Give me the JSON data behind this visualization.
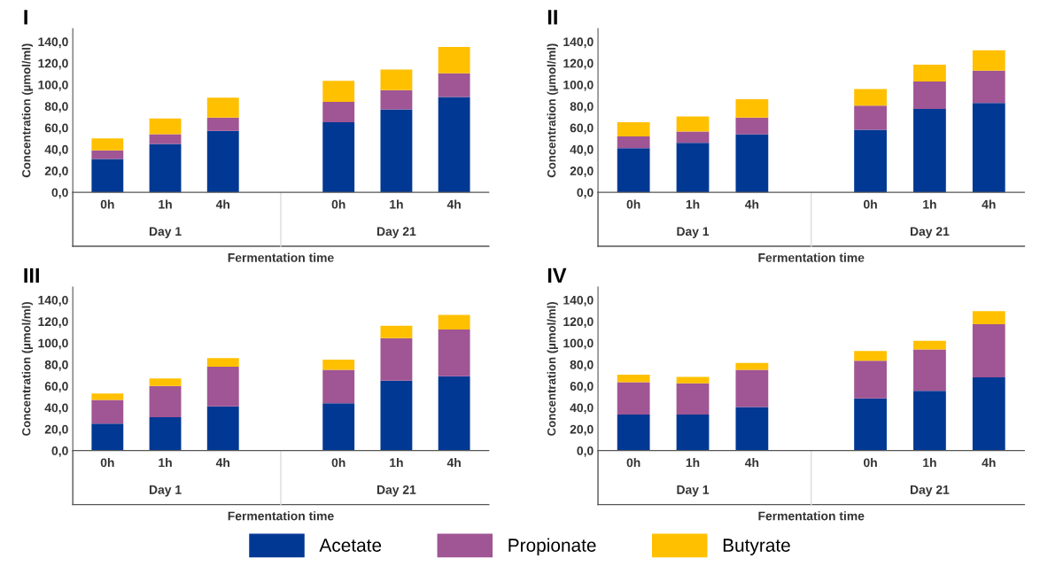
{
  "chart_data": [
    {
      "type": "bar",
      "title": "I",
      "stacked": true,
      "ylabel": "Concentration (µmol/ml)",
      "xlabel": "Fermentation time",
      "annotations": [
        "Day 1",
        "Day 21"
      ],
      "legend": "bottom",
      "categories": [
        "0h",
        "1h",
        "4h",
        null,
        "0h",
        "1h",
        "4h"
      ],
      "ylim": [
        0,
        152
      ],
      "yticks": [
        {
          "value": 0,
          "label": "0,0"
        },
        {
          "value": 20,
          "label": "20,0"
        },
        {
          "value": 40,
          "label": "40,0"
        },
        {
          "value": 60,
          "label": "60,0"
        },
        {
          "value": 80,
          "label": "80,0"
        },
        {
          "value": 100,
          "label": "100,0"
        },
        {
          "value": 120,
          "label": "120,0"
        },
        {
          "value": 140,
          "label": "140,0"
        }
      ],
      "series": [
        {
          "name": "Acetate",
          "color": "#003893",
          "values": [
            31,
            45,
            57,
            null,
            65,
            77,
            88.5
          ]
        },
        {
          "name": "Propionate",
          "color": "#a05594",
          "values": [
            8,
            9,
            12.5,
            null,
            19,
            18,
            22
          ]
        },
        {
          "name": "Butyrate",
          "color": "#ffc000",
          "values": [
            11,
            14.5,
            18.5,
            null,
            19.5,
            19,
            24.5
          ]
        }
      ]
    },
    {
      "type": "bar",
      "title": "II",
      "stacked": true,
      "ylabel": "Concentration (µmol/ml)",
      "xlabel": "Fermentation time",
      "annotations": [
        "Day 1",
        "Day 21"
      ],
      "categories": [
        "0h",
        "1h",
        "4h",
        null,
        "0h",
        "1h",
        "4h"
      ],
      "ylim": [
        0,
        152
      ],
      "yticks": [
        {
          "value": 0,
          "label": "0,0"
        },
        {
          "value": 20,
          "label": "20,0"
        },
        {
          "value": 40,
          "label": "40,0"
        },
        {
          "value": 60,
          "label": "60,0"
        },
        {
          "value": 80,
          "label": "80,0"
        },
        {
          "value": 100,
          "label": "100,0"
        },
        {
          "value": 120,
          "label": "120,0"
        },
        {
          "value": 140,
          "label": "140,0"
        }
      ],
      "series": [
        {
          "color": "#003893",
          "values": [
            41,
            46,
            54,
            null,
            58,
            77.5,
            83
          ]
        },
        {
          "color": "#a05594",
          "values": [
            11,
            10.5,
            15.5,
            null,
            22.5,
            25.5,
            30
          ]
        },
        {
          "color": "#ffc000",
          "values": [
            13,
            14,
            17,
            null,
            15.5,
            15.5,
            19
          ]
        }
      ]
    },
    {
      "type": "bar",
      "title": "III",
      "stacked": true,
      "ylabel": "Concentration (µmol/ml)",
      "xlabel": "Fermentation time",
      "annotations": [
        "Day 1",
        "Day 21"
      ],
      "categories": [
        "0h",
        "1h",
        "4h",
        null,
        "0h",
        "1h",
        "4h"
      ],
      "ylim": [
        0,
        152
      ],
      "yticks": [
        {
          "value": 0,
          "label": "0,0"
        },
        {
          "value": 20,
          "label": "20,0"
        },
        {
          "value": 40,
          "label": "40,0"
        },
        {
          "value": 60,
          "label": "60,0"
        },
        {
          "value": 80,
          "label": "80,0"
        },
        {
          "value": 100,
          "label": "100,0"
        },
        {
          "value": 120,
          "label": "120,0"
        },
        {
          "value": 140,
          "label": "140,0"
        }
      ],
      "series": [
        {
          "color": "#003893",
          "values": [
            25,
            31,
            41,
            null,
            44,
            65,
            69
          ]
        },
        {
          "color": "#a05594",
          "values": [
            22,
            29,
            37,
            null,
            31,
            39.5,
            43.5
          ]
        },
        {
          "color": "#ffc000",
          "values": [
            6,
            7,
            8,
            null,
            9.5,
            11.5,
            13.5
          ]
        }
      ]
    },
    {
      "type": "bar",
      "title": "IV",
      "stacked": true,
      "ylabel": "Concentration (µmol/ml)",
      "xlabel": "Fermentation time",
      "annotations": [
        "Day 1",
        "Day 21"
      ],
      "categories": [
        "0h",
        "1h",
        "4h",
        null,
        "0h",
        "1h",
        "4h"
      ],
      "ylim": [
        0,
        152
      ],
      "yticks": [
        {
          "value": 0,
          "label": "0,0"
        },
        {
          "value": 20,
          "label": "20,0"
        },
        {
          "value": 40,
          "label": "40,0"
        },
        {
          "value": 60,
          "label": "60,0"
        },
        {
          "value": 80,
          "label": "80,0"
        },
        {
          "value": 100,
          "label": "100,0"
        },
        {
          "value": 120,
          "label": "120,0"
        },
        {
          "value": 140,
          "label": "140,0"
        }
      ],
      "series": [
        {
          "color": "#003893",
          "values": [
            33.5,
            33.5,
            40.5,
            null,
            48.5,
            55.5,
            68
          ]
        },
        {
          "color": "#a05594",
          "values": [
            30,
            29,
            34.5,
            null,
            35,
            38.5,
            49.5
          ]
        },
        {
          "color": "#ffc000",
          "values": [
            7,
            6,
            6.5,
            null,
            9,
            8,
            12
          ]
        }
      ]
    }
  ]
}
